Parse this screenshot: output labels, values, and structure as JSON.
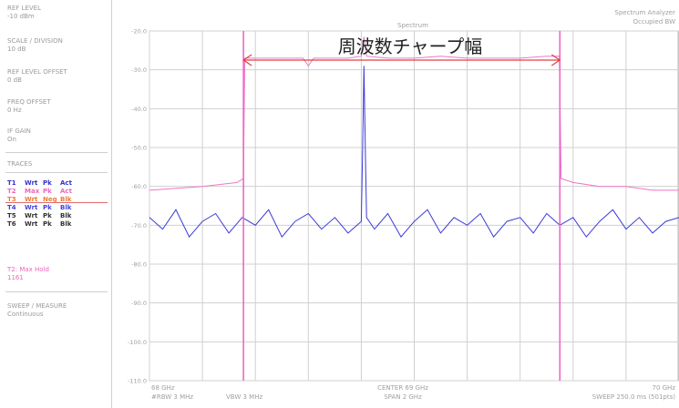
{
  "sidebar": {
    "ref_level_label": "REF LEVEL",
    "ref_level_value": "-10 dBm",
    "scale_label": "SCALE / DIVISION",
    "scale_value": "10 dB",
    "ref_offset_label": "REF LEVEL OFFSET",
    "ref_offset_value": "0 dB",
    "freq_offset_label": "FREQ OFFSET",
    "freq_offset_value": "0 Hz",
    "if_gain_label": "IF GAIN",
    "if_gain_value": "On",
    "traces_label": "TRACES",
    "traces": [
      {
        "id": "T1",
        "mode": "Wrt",
        "det": "Pk",
        "state": "Act",
        "color": "#3333cc"
      },
      {
        "id": "T2",
        "mode": "Max",
        "det": "Pk",
        "state": "Act",
        "color": "#ee66bb"
      },
      {
        "id": "T3",
        "mode": "Wrt",
        "det": "Neg",
        "state": "Blk",
        "color": "#f07a3a"
      },
      {
        "id": "T4",
        "mode": "Wrt",
        "det": "Pk",
        "state": "Blk",
        "color": "#4444dd"
      },
      {
        "id": "T5",
        "mode": "Wrt",
        "det": "Pk",
        "state": "Blk",
        "color": "#333333"
      },
      {
        "id": "T6",
        "mode": "Wrt",
        "det": "Pk",
        "state": "Blk",
        "color": "#333333"
      }
    ],
    "max_hold_label": "T2: Max Hold",
    "max_hold_value": "1161",
    "sweep_label": "SWEEP / MEASURE",
    "sweep_value": "Continuous"
  },
  "header": {
    "title": "Spectrum",
    "app_name": "Spectrum Analyzer",
    "mode_name": "Occupied BW"
  },
  "annotation": {
    "text": "周波数チャープ幅"
  },
  "footer": {
    "start_freq": "68 GHz",
    "center_freq": "CENTER 69 GHz",
    "stop_freq": "70 GHz",
    "rbw": "#RBW 3 MHz",
    "vbw": "VBW 3 MHz",
    "span": "SPAN 2 GHz",
    "sweep_time": "SWEEP 250.0 ms (501pts)"
  },
  "colors": {
    "trace_live": "#3a3ad8",
    "trace_maxhold": "#ee77c4",
    "marker_line": "#ee66cc",
    "arrow": "#e04040",
    "grid": "#d0d0d0"
  },
  "chart_data": {
    "type": "line",
    "ylabel": "",
    "xlabel": "",
    "y_ticks": [
      "-20.0",
      "-30.0",
      "-40.0",
      "-50.0",
      "-60.0",
      "-70.0",
      "-80.0",
      "-90.0",
      "-100.0",
      "-110.0"
    ],
    "y_tick_values": [
      -20,
      -30,
      -40,
      -50,
      -60,
      -70,
      -80,
      -90,
      -100,
      -110
    ],
    "ylim": [
      -110,
      -20
    ],
    "xlim": [
      68,
      70
    ],
    "x_unit": "GHz",
    "grid": true,
    "markers_x": [
      68.355,
      69.55
    ],
    "series": [
      {
        "key": "max_hold",
        "x": [
          68.0,
          68.2,
          68.33,
          68.355,
          68.36,
          68.5,
          68.58,
          68.6,
          68.62,
          68.75,
          68.8,
          68.81,
          68.82,
          68.9,
          69.0,
          69.1,
          69.2,
          69.3,
          69.4,
          69.5,
          69.548,
          69.555,
          69.6,
          69.7,
          69.8,
          69.9,
          70.0
        ],
        "values": [
          -61,
          -60,
          -59,
          -58,
          -27,
          -27,
          -27,
          -29,
          -27,
          -27,
          -26.5,
          -21.5,
          -26.5,
          -27,
          -27,
          -26.5,
          -27,
          -27,
          -27,
          -26.5,
          -26.5,
          -58,
          -59,
          -60,
          -60,
          -61,
          -61
        ]
      },
      {
        "key": "live",
        "x": [
          68.0,
          68.05,
          68.1,
          68.15,
          68.2,
          68.25,
          68.3,
          68.35,
          68.4,
          68.45,
          68.5,
          68.55,
          68.6,
          68.65,
          68.7,
          68.75,
          68.8,
          68.805,
          68.81,
          68.815,
          68.82,
          68.85,
          68.9,
          68.95,
          69.0,
          69.05,
          69.1,
          69.15,
          69.2,
          69.25,
          69.3,
          69.35,
          69.4,
          69.45,
          69.5,
          69.55,
          69.6,
          69.65,
          69.7,
          69.75,
          69.8,
          69.85,
          69.9,
          69.95,
          70.0
        ],
        "values": [
          -68,
          -71,
          -66,
          -73,
          -69,
          -67,
          -72,
          -68,
          -70,
          -66,
          -73,
          -69,
          -67,
          -71,
          -68,
          -72,
          -69,
          -50,
          -29,
          -50,
          -68,
          -71,
          -67,
          -73,
          -69,
          -66,
          -72,
          -68,
          -70,
          -67,
          -73,
          -69,
          -68,
          -72,
          -67,
          -70,
          -68,
          -73,
          -69,
          -66,
          -71,
          -68,
          -72,
          -69,
          -68
        ]
      }
    ]
  }
}
